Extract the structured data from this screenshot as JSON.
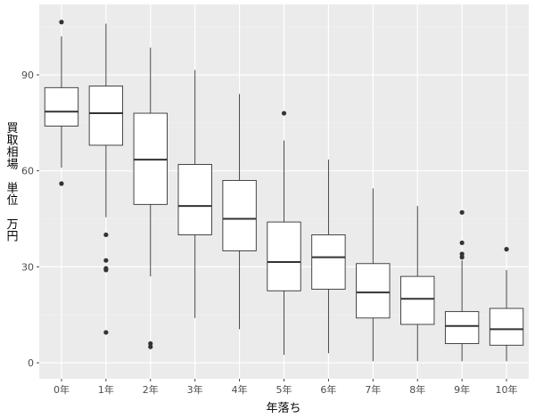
{
  "chart_data": {
    "type": "boxplot",
    "title": "",
    "xlabel": "年落ち",
    "ylabel_chars": [
      "買",
      "取",
      "相",
      "場",
      "",
      "単",
      "位",
      "",
      "万",
      "円"
    ],
    "ylim": [
      -5,
      112
    ],
    "yticks": [
      0,
      30,
      60,
      90
    ],
    "grid": true,
    "categories": [
      "0年",
      "1年",
      "2年",
      "3年",
      "4年",
      "5年",
      "6年",
      "7年",
      "8年",
      "9年",
      "10年"
    ],
    "boxes": [
      {
        "category": "0年",
        "whisker_low": 61,
        "q1": 74,
        "median": 78.5,
        "q3": 86,
        "whisker_high": 102,
        "outliers": [
          56,
          106.5
        ]
      },
      {
        "category": "1年",
        "whisker_low": 45.5,
        "q1": 68,
        "median": 78,
        "q3": 86.5,
        "whisker_high": 106,
        "outliers": [
          40,
          32,
          29.5,
          29,
          9.5
        ]
      },
      {
        "category": "2年",
        "whisker_low": 27,
        "q1": 49.5,
        "median": 63.5,
        "q3": 78,
        "whisker_high": 98.5,
        "outliers": [
          6,
          5
        ]
      },
      {
        "category": "3年",
        "whisker_low": 14,
        "q1": 40,
        "median": 49,
        "q3": 62,
        "whisker_high": 91.5,
        "outliers": []
      },
      {
        "category": "4年",
        "whisker_low": 10.5,
        "q1": 35,
        "median": 45,
        "q3": 57,
        "whisker_high": 84,
        "outliers": []
      },
      {
        "category": "5年",
        "whisker_low": 2.5,
        "q1": 22.5,
        "median": 31.5,
        "q3": 44,
        "whisker_high": 69.5,
        "outliers": [
          78
        ]
      },
      {
        "category": "6年",
        "whisker_low": 3,
        "q1": 23,
        "median": 33,
        "q3": 40,
        "whisker_high": 63.5,
        "outliers": []
      },
      {
        "category": "7年",
        "whisker_low": 0.5,
        "q1": 14,
        "median": 22,
        "q3": 31,
        "whisker_high": 54.5,
        "outliers": []
      },
      {
        "category": "8年",
        "whisker_low": 0.5,
        "q1": 12,
        "median": 20,
        "q3": 27,
        "whisker_high": 49,
        "outliers": []
      },
      {
        "category": "9年",
        "whisker_low": 0.5,
        "q1": 6,
        "median": 11.5,
        "q3": 16,
        "whisker_high": 32,
        "outliers": [
          47,
          37.5,
          34,
          33
        ]
      },
      {
        "category": "10年",
        "whisker_low": 0.5,
        "q1": 5.5,
        "median": 10.5,
        "q3": 17,
        "whisker_high": 29,
        "outliers": [
          35.5
        ]
      }
    ],
    "colors": {
      "panel_background": "#ebebeb",
      "grid_major": "#ffffff",
      "grid_minor": "#f2f2f2",
      "box_fill": "#ffffff",
      "box_line": "#333333",
      "outlier": "#333333",
      "tick_text": "#4d4d4d",
      "axis_text": "#000000"
    }
  }
}
